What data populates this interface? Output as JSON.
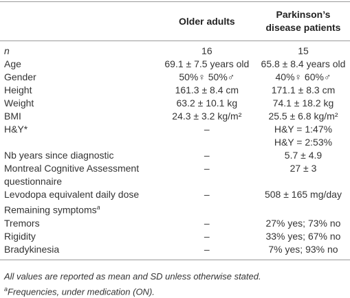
{
  "table": {
    "header": {
      "older": "Older adults",
      "pd": "Parkinson’s disease patients"
    },
    "rows": [
      {
        "label": "n",
        "older": "16",
        "pd": "15"
      },
      {
        "label": "Age",
        "older": "69.1 ± 7.5 years old",
        "pd": "65.8 ± 8.4 years old"
      },
      {
        "label": "Gender",
        "older": "50%♀  50%♂",
        "pd": "40%♀  60%♂"
      },
      {
        "label": "Height",
        "older": "161.3 ± 8.4 cm",
        "pd": "171.1 ± 8.3 cm"
      },
      {
        "label": "Weight",
        "older": "63.2 ± 10.1 kg",
        "pd": "74.1 ± 18.2 kg"
      },
      {
        "label": "BMI",
        "older": "24.3 ± 3.2 kg/m²",
        "pd": "25.5 ± 6.8 kg/m²"
      },
      {
        "label": "H&Y*",
        "older": "–",
        "pd": [
          "H&Y = 1:47%",
          "H&Y = 2:53%"
        ]
      },
      {
        "label": "Nb years since diagnostic",
        "older": "–",
        "pd": "5.7 ± 4.9"
      },
      {
        "label": "Montreal Cognitive Assessment questionnaire",
        "older": "–",
        "pd": "27 ± 3"
      },
      {
        "label": "Levodopa equivalent daily dose",
        "older": "–",
        "pd": "508 ± 165 mg/day"
      },
      {
        "label": "Remaining symptoms",
        "label_sup": "a"
      },
      {
        "label": "Tremors",
        "older": "–",
        "pd": "27% yes; 73% no"
      },
      {
        "label": "Rigidity",
        "older": "–",
        "pd": "33% yes; 67% no"
      },
      {
        "label": "Bradykinesia",
        "older": "–",
        "pd": "7% yes; 93% no"
      }
    ],
    "footnotes": [
      {
        "text": "All values are reported as mean and SD unless otherwise stated."
      },
      {
        "marker": "a",
        "text": "Frequencies, under medication (ON)."
      }
    ]
  }
}
